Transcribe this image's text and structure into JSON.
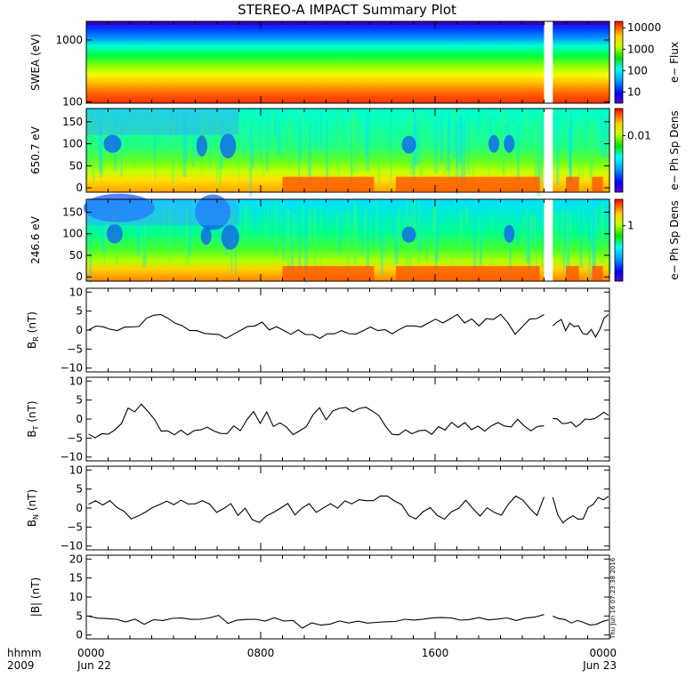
{
  "title": "STEREO-A IMPACT Summary Plot",
  "timestamp": "Thu Jun 16 07:23:38 2016",
  "time_axis": {
    "row1_label": "hhmm",
    "row2_label": "2009",
    "ticks": [
      {
        "t": 0,
        "time": "0000",
        "date": "Jun 22"
      },
      {
        "t": 8,
        "time": "0800",
        "date": ""
      },
      {
        "t": 16,
        "time": "1600",
        "date": ""
      },
      {
        "t": 24,
        "time": "0000",
        "date": "Jun 23"
      }
    ]
  },
  "colors": {
    "line": "#000000",
    "gap": "#ffffff"
  },
  "chart_data": [
    {
      "type": "heatmap",
      "name": "swea",
      "ylabel": "SWEA (eV)",
      "yscale": "log",
      "ylim": [
        95,
        2000
      ],
      "yticks": [
        {
          "v": 100,
          "label": "100"
        },
        {
          "v": 1000,
          "label": "1000"
        }
      ],
      "colorbar": {
        "label": "e− Flux",
        "scale": "log",
        "range": [
          3,
          20000
        ],
        "ticks": [
          {
            "v": 10,
            "label": "10"
          },
          {
            "v": 100,
            "label": "100"
          },
          {
            "v": 1000,
            "label": "1000"
          },
          {
            "v": 10000,
            "label": "10000"
          }
        ]
      },
      "gaps": [
        [
          21.0,
          21.4
        ]
      ]
    },
    {
      "type": "heatmap",
      "name": "pad_650",
      "ylabel": "650.7 eV",
      "ylim": [
        -10,
        180
      ],
      "yticks": [
        {
          "v": 0,
          "label": "0"
        },
        {
          "v": 50,
          "label": "50"
        },
        {
          "v": 100,
          "label": "100"
        },
        {
          "v": 150,
          "label": "150"
        }
      ],
      "colorbar": {
        "label": "e− Ph Sp Dens",
        "scale": "log",
        "range": [
          0.001,
          0.03
        ],
        "ticks": [
          {
            "v": 0.01,
            "label": "0.01"
          }
        ]
      },
      "gaps": [
        [
          21.0,
          21.4
        ]
      ]
    },
    {
      "type": "heatmap",
      "name": "pad_246",
      "ylabel": "246.6 eV",
      "ylim": [
        -10,
        180
      ],
      "yticks": [
        {
          "v": 0,
          "label": "0"
        },
        {
          "v": 50,
          "label": "50"
        },
        {
          "v": 100,
          "label": "100"
        },
        {
          "v": 150,
          "label": "150"
        }
      ],
      "colorbar": {
        "label": "e− Ph Sp Dens",
        "scale": "log",
        "range": [
          0.1,
          3
        ],
        "ticks": [
          {
            "v": 1,
            "label": "1"
          }
        ]
      },
      "gaps": [
        [
          21.0,
          21.4
        ]
      ]
    },
    {
      "type": "line",
      "name": "br",
      "ylabel": "B",
      "ylabel_sub": "R",
      "ylabel_unit": "(nT)",
      "ylim": [
        -11,
        11
      ],
      "yticks": [
        {
          "v": -10,
          "label": "−10"
        },
        {
          "v": -5,
          "label": "−5"
        },
        {
          "v": 0,
          "label": "0"
        },
        {
          "v": 5,
          "label": "5"
        },
        {
          "v": 10,
          "label": "10"
        }
      ],
      "x": [
        0,
        0.5,
        1,
        1.5,
        2,
        2.5,
        3,
        3.5,
        4,
        4.5,
        5,
        5.5,
        6,
        6.5,
        7,
        7.5,
        8,
        8.5,
        9,
        9.5,
        10,
        10.5,
        11,
        11.5,
        12,
        12.5,
        13,
        13.5,
        14,
        14.5,
        15,
        15.5,
        16,
        16.5,
        17,
        17.5,
        18,
        18.5,
        19,
        19.5,
        20,
        20.5,
        21,
        21.5,
        22,
        22.5,
        23,
        23.5,
        24
      ],
      "segments": [
        [
          0,
          1,
          1,
          0,
          0,
          1,
          1,
          1,
          3,
          4,
          4,
          3,
          2,
          1,
          0,
          0,
          -1,
          -1,
          -1,
          -2,
          -1,
          0,
          1,
          1,
          2,
          0,
          1,
          0,
          -1,
          0,
          -1,
          -1,
          -2,
          -1,
          -1,
          0,
          -1,
          -1,
          0,
          1,
          0,
          0,
          -1,
          0,
          1,
          1,
          1,
          2,
          3,
          2,
          3,
          4,
          2,
          3,
          1,
          3,
          3,
          4,
          2,
          -1,
          1,
          3,
          3,
          4
        ],
        [
          1,
          2,
          3,
          0,
          2,
          1,
          1,
          -1,
          -1,
          0,
          -2,
          0,
          3,
          4
        ]
      ]
    },
    {
      "type": "line",
      "name": "bt",
      "ylabel": "B",
      "ylabel_sub": "T",
      "ylabel_unit": "(nT)",
      "ylim": [
        -11,
        11
      ],
      "yticks": [
        {
          "v": -10,
          "label": "−10"
        },
        {
          "v": -5,
          "label": "−5"
        },
        {
          "v": 0,
          "label": "0"
        },
        {
          "v": 5,
          "label": "5"
        },
        {
          "v": 10,
          "label": "10"
        }
      ],
      "segments": [
        [
          -4,
          -5,
          -4,
          -4,
          -3,
          -1,
          3,
          2,
          4,
          2,
          0,
          -3,
          -3,
          -4,
          -3,
          -4,
          -3,
          -3,
          -2,
          -3,
          -4,
          -4,
          -2,
          -3,
          0,
          2,
          -1,
          2,
          -2,
          -1,
          -2,
          -4,
          -3,
          -2,
          1,
          3,
          0,
          2,
          3,
          3,
          2,
          3,
          3,
          2,
          1,
          -2,
          -4,
          -4,
          -3,
          -4,
          -3,
          -3,
          -4,
          -2,
          -3,
          -1,
          -2,
          -1,
          -3,
          -2,
          -3,
          -2,
          -1,
          -2,
          -2,
          0,
          -2,
          -3,
          -2,
          -2
        ],
        [
          0,
          0,
          -1,
          -1,
          -1,
          -2,
          -1,
          0,
          0,
          0,
          1,
          2,
          1
        ]
      ]
    },
    {
      "type": "line",
      "name": "bn",
      "ylabel": "B",
      "ylabel_sub": "N",
      "ylabel_unit": "(nT)",
      "ylim": [
        -11,
        11
      ],
      "yticks": [
        {
          "v": -10,
          "label": "−10"
        },
        {
          "v": -5,
          "label": "−5"
        },
        {
          "v": 0,
          "label": "0"
        },
        {
          "v": 5,
          "label": "5"
        },
        {
          "v": 10,
          "label": "10"
        }
      ],
      "segments": [
        [
          1,
          2,
          1,
          2,
          0,
          -1,
          -3,
          -2,
          -1,
          0,
          1,
          2,
          1,
          2,
          1,
          1,
          2,
          1,
          -1,
          0,
          1,
          -2,
          0,
          -3,
          -4,
          -2,
          -1,
          0,
          1,
          -2,
          0,
          1,
          -1,
          0,
          1,
          0,
          2,
          1,
          2,
          2,
          2,
          3,
          3,
          2,
          1,
          -2,
          -3,
          -1,
          0,
          -2,
          -3,
          -1,
          0,
          2,
          0,
          -2,
          0,
          -1,
          -2,
          1,
          3,
          2,
          0,
          -2,
          3
        ],
        [
          3,
          -2,
          -4,
          -3,
          -2,
          -3,
          -3,
          0,
          1,
          3,
          2,
          3
        ]
      ]
    },
    {
      "type": "line",
      "name": "bmag",
      "ylabel": "|B| (nT)",
      "ylim": [
        -1,
        21
      ],
      "yticks": [
        {
          "v": 0,
          "label": "0"
        },
        {
          "v": 5,
          "label": "5"
        },
        {
          "v": 10,
          "label": "10"
        },
        {
          "v": 15,
          "label": "15"
        },
        {
          "v": 20,
          "label": "20"
        }
      ],
      "segments": [
        [
          5,
          4.5,
          4.5,
          4,
          3.5,
          4,
          3,
          4,
          4,
          4.5,
          4.5,
          4,
          4,
          4.5,
          5,
          3,
          4,
          4,
          4,
          3.5,
          4.5,
          3.5,
          4,
          2,
          3,
          2.5,
          3,
          3.5,
          3,
          3.5,
          3,
          3.5,
          3.5,
          3.5,
          4,
          4,
          4,
          4.5,
          4.5,
          4.5,
          4,
          4,
          4.5,
          4,
          4,
          4.5,
          4,
          4.5,
          4.5,
          5.5
        ],
        [
          5,
          4.5,
          4,
          3,
          4,
          3.5,
          2.5,
          3,
          3.5,
          4
        ]
      ]
    }
  ]
}
